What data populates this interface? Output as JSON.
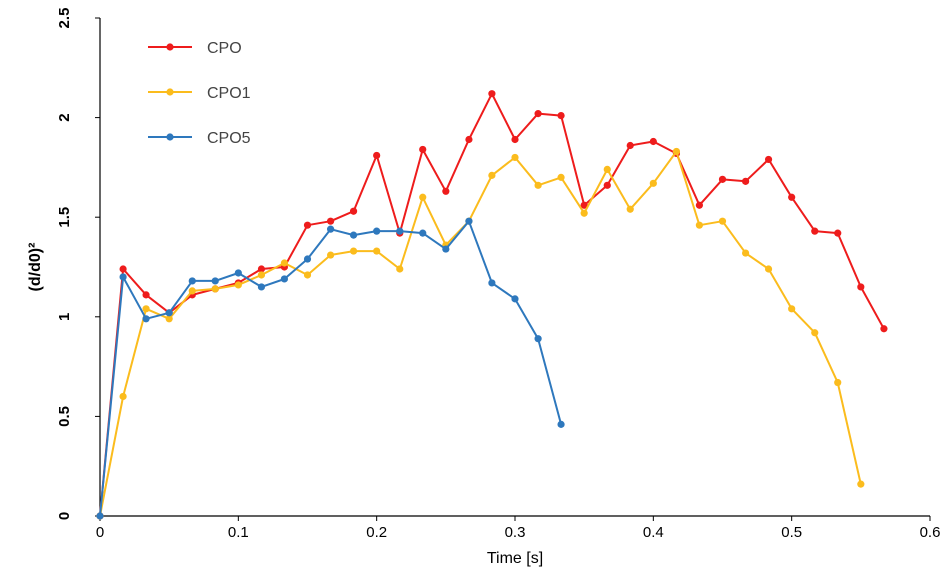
{
  "chart_data": {
    "type": "line",
    "xlabel": "Time [s]",
    "ylabel": "(d/d0)²",
    "xlim": [
      0,
      0.6
    ],
    "ylim": [
      0,
      2.5
    ],
    "xticks": [
      0,
      0.1,
      0.2,
      0.3,
      0.4,
      0.5,
      0.6
    ],
    "yticks": [
      0,
      0.5,
      1,
      1.5,
      2,
      2.5
    ],
    "xtick_labels": [
      "0",
      "0.1",
      "0.2",
      "0.3",
      "0.4",
      "0.5",
      "0.6"
    ],
    "ytick_labels": [
      "0",
      "0.5",
      "1",
      "1.5",
      "2",
      "2.5"
    ],
    "grid": false,
    "legend_position": "top-left",
    "series": [
      {
        "name": "CPO",
        "color": "#ee1c1c",
        "x": [
          0,
          0.0167,
          0.0333,
          0.05,
          0.0667,
          0.0833,
          0.1,
          0.1167,
          0.1333,
          0.15,
          0.1667,
          0.1833,
          0.2,
          0.2167,
          0.2333,
          0.25,
          0.2667,
          0.2833,
          0.3,
          0.3167,
          0.3333,
          0.35,
          0.3667,
          0.3833,
          0.4,
          0.4167,
          0.4333,
          0.45,
          0.4667,
          0.4833,
          0.5,
          0.5167,
          0.5333,
          0.55,
          0.5667
        ],
        "y": [
          0,
          1.24,
          1.11,
          1.02,
          1.11,
          1.14,
          1.17,
          1.24,
          1.25,
          1.46,
          1.48,
          1.53,
          1.81,
          1.42,
          1.84,
          1.63,
          1.89,
          2.12,
          1.89,
          2.02,
          2.01,
          1.56,
          1.66,
          1.86,
          1.88,
          1.82,
          1.56,
          1.69,
          1.68,
          1.79,
          1.6,
          1.43,
          1.42,
          1.15,
          0.94
        ]
      },
      {
        "name": "CPO1",
        "color": "#fbbc1d",
        "x": [
          0,
          0.0167,
          0.0333,
          0.05,
          0.0667,
          0.0833,
          0.1,
          0.1167,
          0.1333,
          0.15,
          0.1667,
          0.1833,
          0.2,
          0.2167,
          0.2333,
          0.25,
          0.2667,
          0.2833,
          0.3,
          0.3167,
          0.3333,
          0.35,
          0.3667,
          0.3833,
          0.4,
          0.4167,
          0.4333,
          0.45,
          0.4667,
          0.4833,
          0.5,
          0.5167,
          0.5333,
          0.55
        ],
        "y": [
          0,
          0.6,
          1.04,
          0.99,
          1.13,
          1.14,
          1.16,
          1.21,
          1.27,
          1.21,
          1.31,
          1.33,
          1.33,
          1.24,
          1.6,
          1.36,
          1.48,
          1.71,
          1.8,
          1.66,
          1.7,
          1.52,
          1.74,
          1.54,
          1.67,
          1.83,
          1.46,
          1.48,
          1.32,
          1.24,
          1.04,
          0.92,
          0.67,
          0.16
        ]
      },
      {
        "name": "CPO5",
        "color": "#2e78bd",
        "x": [
          0,
          0.0167,
          0.0333,
          0.05,
          0.0667,
          0.0833,
          0.1,
          0.1167,
          0.1333,
          0.15,
          0.1667,
          0.1833,
          0.2,
          0.2167,
          0.2333,
          0.25,
          0.2667,
          0.2833,
          0.3,
          0.3167,
          0.3333
        ],
        "y": [
          0,
          1.2,
          0.99,
          1.02,
          1.18,
          1.18,
          1.22,
          1.15,
          1.19,
          1.29,
          1.44,
          1.41,
          1.43,
          1.43,
          1.42,
          1.34,
          1.48,
          1.17,
          1.09,
          0.89,
          0.46
        ]
      }
    ]
  }
}
